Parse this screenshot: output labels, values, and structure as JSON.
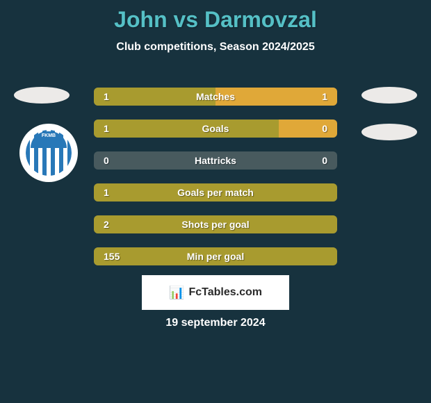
{
  "colors": {
    "background": "#17323e",
    "title": "#55c0c6",
    "subtitle": "#ffffff",
    "ellipse": "#eceae8",
    "logo_bg": "#ffffff",
    "logo_accent": "#2878b8",
    "stat_track": "#485a5e",
    "bar_p1": "#a89b2f",
    "bar_p2": "#e0a838",
    "text": "#ffffff",
    "footer_bg": "#ffffff",
    "footer_text": "#2a2a2a",
    "date": "#ffffff"
  },
  "title": {
    "p1": "John",
    "vs": " vs ",
    "p2": "Darmovzal"
  },
  "subtitle": "Club competitions, Season 2024/2025",
  "logo_text": "FKMB",
  "stats": [
    {
      "label": "Matches",
      "v1": "1",
      "v2": "1",
      "w1": 50,
      "w2": 50
    },
    {
      "label": "Goals",
      "v1": "1",
      "v2": "0",
      "w1": 76,
      "w2": 24
    },
    {
      "label": "Hattricks",
      "v1": "0",
      "v2": "0",
      "w1": 0,
      "w2": 0
    },
    {
      "label": "Goals per match",
      "v1": "1",
      "v2": "",
      "w1": 100,
      "w2": 0
    },
    {
      "label": "Shots per goal",
      "v1": "2",
      "v2": "",
      "w1": 100,
      "w2": 0
    },
    {
      "label": "Min per goal",
      "v1": "155",
      "v2": "",
      "w1": 100,
      "w2": 0
    }
  ],
  "footer": "FcTables.com",
  "date": "19 september 2024"
}
